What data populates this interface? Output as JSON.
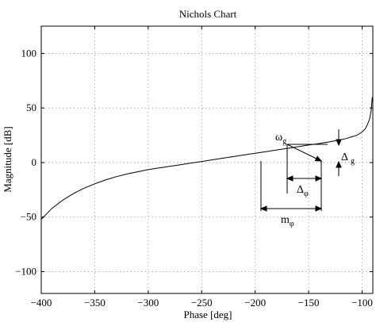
{
  "chart_data": {
    "type": "line",
    "title": "Nichols Chart",
    "xlabel": "Phase [deg]",
    "ylabel": "Magnitude [dB]",
    "xlim": [
      -400,
      -90
    ],
    "ylim": [
      -120,
      125
    ],
    "xticks": [
      -400,
      -350,
      -300,
      -250,
      -200,
      -150,
      -100
    ],
    "yticks": [
      -100,
      -50,
      0,
      50,
      100
    ],
    "xtick_labels": [
      "−400",
      "−350",
      "−300",
      "−250",
      "−200",
      "−150",
      "−100"
    ],
    "ytick_labels": [
      "−100",
      "−50",
      "0",
      "50",
      "100"
    ],
    "grid": true,
    "series": [
      {
        "x": [
          -400,
          -390,
          -380,
          -370,
          -360,
          -350,
          -340,
          -330,
          -320,
          -310,
          -300,
          -290,
          -280,
          -270,
          -260,
          -250,
          -240,
          -230,
          -220,
          -210,
          -200,
          -190,
          -180,
          -170,
          -160,
          -150,
          -140,
          -130,
          -120,
          -115,
          -110,
          -105,
          -100,
          -97,
          -95,
          -93,
          -91.5,
          -90.5
        ],
        "y": [
          -52,
          -42,
          -34.5,
          -28.5,
          -23.5,
          -19.5,
          -16,
          -13,
          -10.5,
          -8.5,
          -6.5,
          -5,
          -3.5,
          -2,
          -0.5,
          1,
          2.5,
          4,
          5.5,
          7,
          8.5,
          10,
          11.5,
          13,
          14.5,
          16,
          17.5,
          19,
          21,
          22,
          23.5,
          25,
          28,
          31,
          35,
          40,
          48,
          60
        ]
      }
    ],
    "annotations": {
      "omega_g": "ω",
      "omega_g_sub": "g",
      "delta_g": "Δ",
      "delta_g_sub": "g",
      "delta_phi": "Δ",
      "delta_phi_sub": "φ",
      "m_phi": "m",
      "m_phi_sub": "φ"
    }
  }
}
